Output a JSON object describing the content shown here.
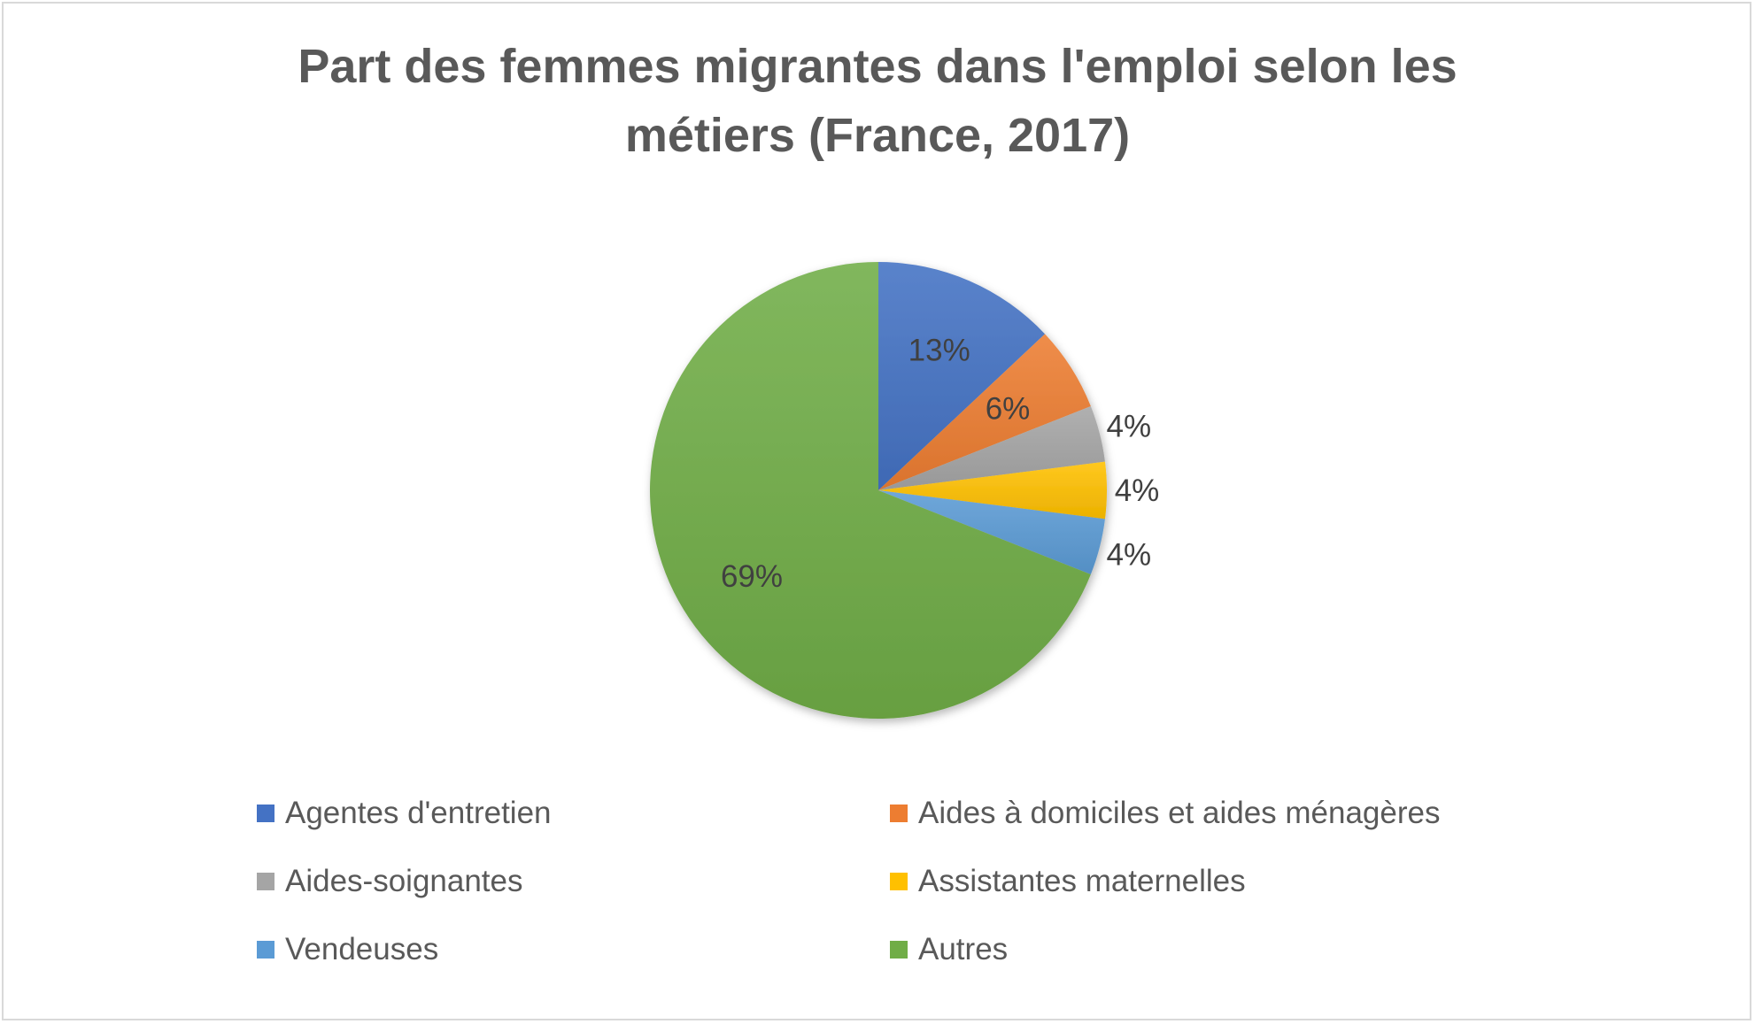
{
  "chart_data": {
    "type": "pie",
    "title_lines": [
      "Part des femmes migrantes dans l'emploi selon les",
      "métiers (France, 2017)"
    ],
    "title": "Part des femmes migrantes dans l'emploi selon les métiers (France, 2017)",
    "legend_position": "bottom",
    "slices": [
      {
        "name": "Agentes d'entretien",
        "value": 13,
        "label": "13%",
        "color": "#4472C4",
        "label_placement": "inside"
      },
      {
        "name": "Aides à domiciles et aides ménagères",
        "value": 6,
        "label": "6%",
        "color": "#ED7D31",
        "label_placement": "inside"
      },
      {
        "name": "Aides-soignantes",
        "value": 4,
        "label": "4%",
        "color": "#A5A5A5",
        "label_placement": "outside"
      },
      {
        "name": "Assistantes maternelles",
        "value": 4,
        "label": "4%",
        "color": "#FFC000",
        "label_placement": "outside"
      },
      {
        "name": "Vendeuses",
        "value": 4,
        "label": "4%",
        "color": "#5B9BD5",
        "label_placement": "outside"
      },
      {
        "name": "Autres",
        "value": 69,
        "label": "69%",
        "color": "#70AD47",
        "label_placement": "inside"
      }
    ]
  }
}
